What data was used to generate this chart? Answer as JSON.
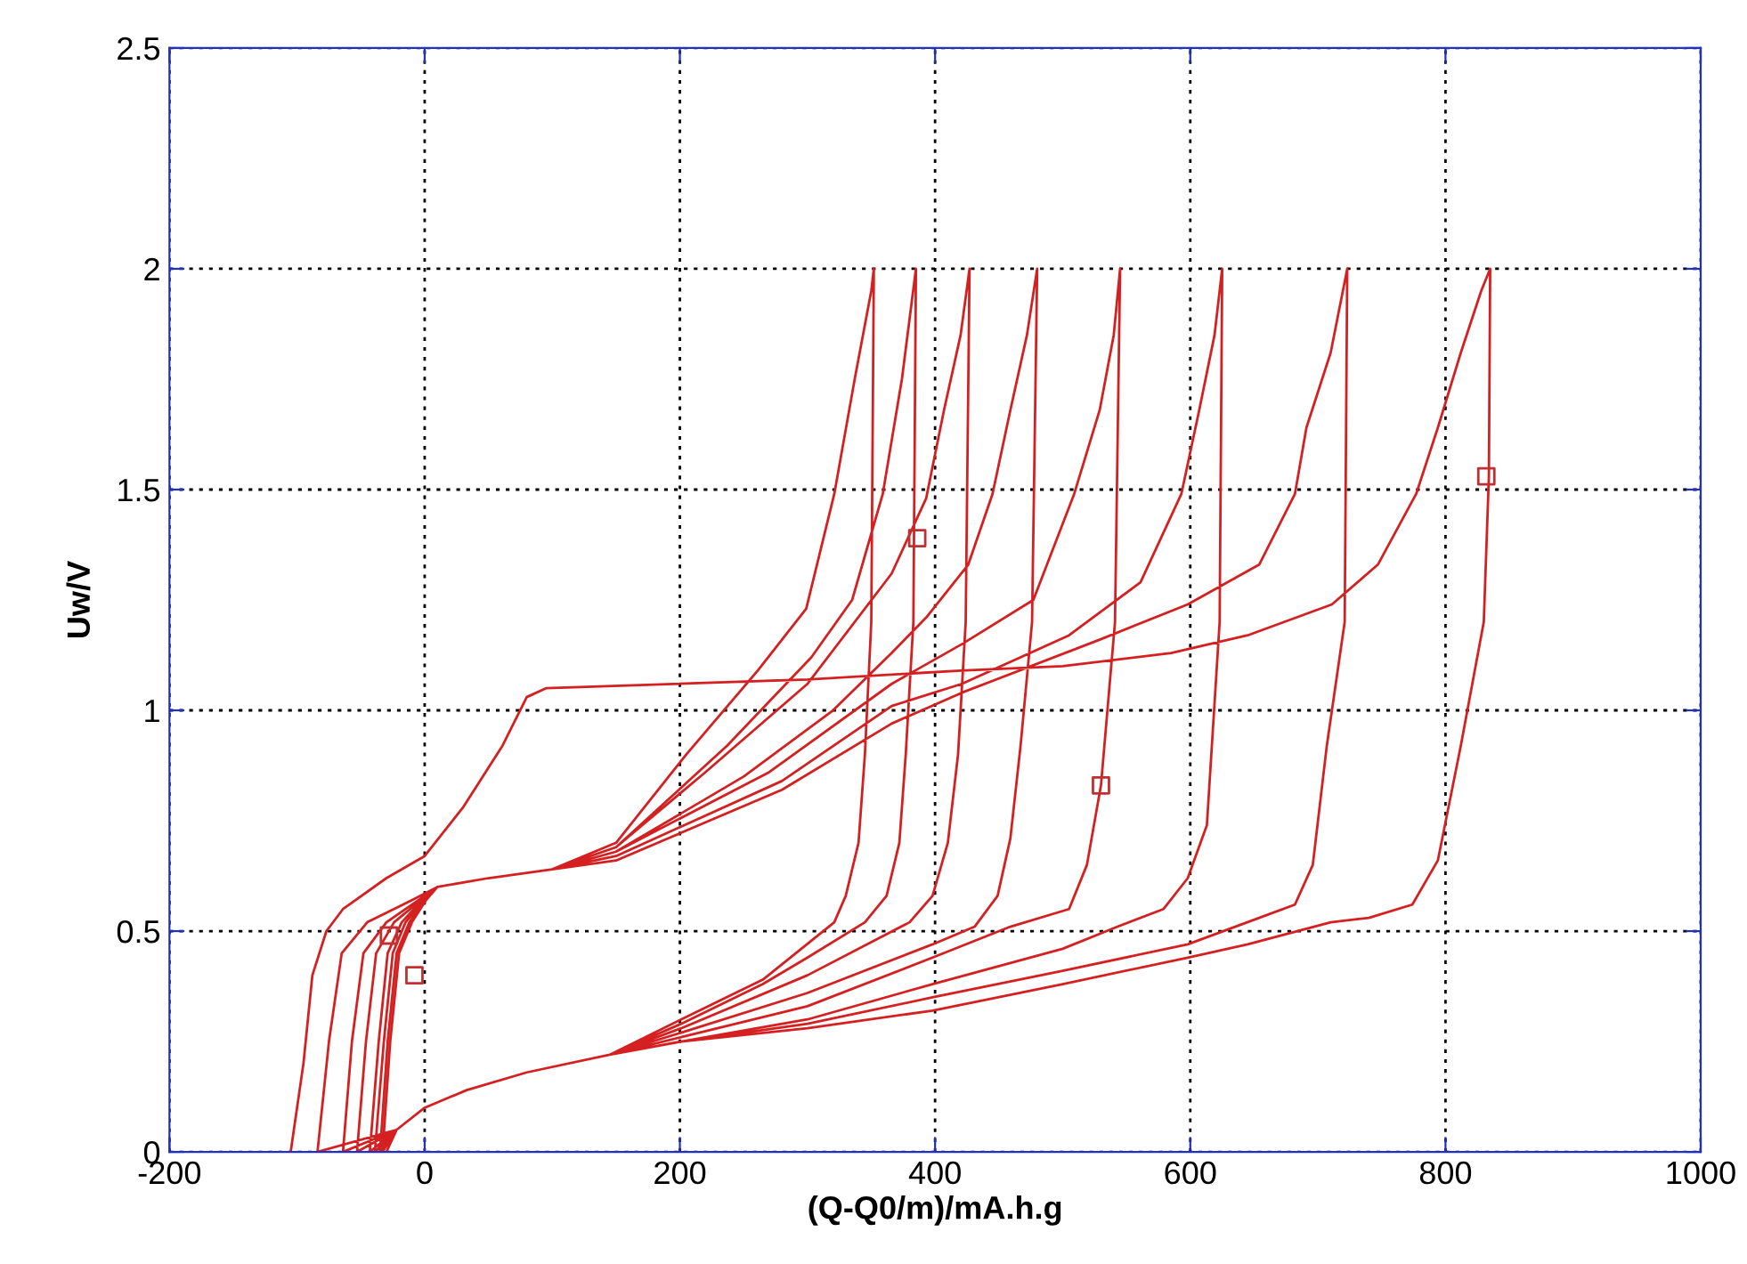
{
  "chart_data": {
    "type": "line",
    "xlabel": "(Q-Q0/m)/mA.h.g",
    "ylabel": "Uw/V",
    "xlim": [
      -200,
      1000
    ],
    "ylim": [
      0,
      2.5
    ],
    "xticks": [
      -200,
      0,
      200,
      400,
      600,
      800,
      1000
    ],
    "yticks": [
      0,
      0.5,
      1,
      1.5,
      2,
      2.5
    ],
    "grid": true,
    "series": [
      {
        "color": "#d42020",
        "x": [
          -105,
          -95,
          -88,
          -77,
          -64,
          -30,
          0,
          30,
          61,
          80,
          95,
          300,
          420,
          500,
          585,
          645,
          711,
          747,
          777,
          794,
          812,
          828,
          835,
          834,
          830,
          812,
          794,
          774,
          740,
          710,
          645,
          598,
          500,
          398,
          300,
          201,
          145,
          80,
          33,
          0,
          -22,
          -84,
          -75,
          -65,
          -45,
          -10,
          10,
          50,
          100,
          150,
          280,
          366,
          421,
          529,
          598,
          654,
          682,
          691,
          710,
          723,
          721,
          707,
          696,
          682,
          654,
          598,
          500,
          398,
          300,
          201,
          145,
          80,
          33,
          0,
          -22,
          -64,
          -57,
          -48,
          -30,
          -5,
          10,
          50,
          100,
          150,
          280,
          366,
          421,
          505,
          561,
          593,
          607,
          619,
          625,
          623,
          613,
          598,
          579,
          543,
          500,
          398,
          300,
          201,
          145,
          80,
          33,
          0,
          -22,
          -53,
          -46,
          -38,
          -24,
          -3,
          10,
          50,
          100,
          150,
          270,
          366,
          421,
          477,
          509,
          529,
          540,
          545,
          541,
          530,
          519,
          505,
          459,
          398,
          300,
          201,
          145,
          80,
          33,
          0,
          -22,
          -43,
          -36,
          -29,
          -18,
          -2,
          10,
          50,
          100,
          150,
          250,
          320,
          366,
          393,
          426,
          445,
          459,
          472,
          480,
          476,
          467,
          459,
          449,
          431,
          398,
          300,
          201,
          145,
          80,
          33,
          0,
          -22,
          -39,
          -32,
          -25,
          -15,
          -1,
          10,
          50,
          100,
          150,
          220,
          300,
          366,
          393,
          407,
          420,
          427,
          424,
          418,
          410,
          398,
          380,
          300,
          201,
          145,
          80,
          33,
          0,
          -22,
          -35,
          -29,
          -22,
          -12,
          0,
          10,
          50,
          100,
          150,
          237,
          303,
          335,
          359,
          374,
          385,
          383,
          377,
          372,
          362,
          345,
          300,
          265,
          201,
          145,
          80,
          33,
          0,
          -22,
          -33,
          -27,
          -20,
          -10,
          1,
          10,
          50,
          100,
          150,
          205,
          261,
          299,
          321,
          337,
          350,
          352,
          350,
          345,
          340,
          330,
          321,
          265,
          201,
          145,
          80,
          33,
          0,
          -22,
          -30
        ],
        "values": [
          0,
          0.2,
          0.4,
          0.5,
          0.55,
          0.62,
          0.67,
          0.78,
          0.92,
          1.03,
          1.05,
          1.07,
          1.09,
          1.1,
          1.13,
          1.17,
          1.24,
          1.33,
          1.49,
          1.64,
          1.81,
          1.95,
          2,
          1.53,
          1.2,
          0.92,
          0.66,
          0.56,
          0.53,
          0.52,
          0.47,
          0.44,
          0.38,
          0.32,
          0.28,
          0.25,
          0.22,
          0.18,
          0.14,
          0.1,
          0.05,
          0,
          0.25,
          0.45,
          0.52,
          0.57,
          0.6,
          0.62,
          0.64,
          0.66,
          0.82,
          0.97,
          1.04,
          1.16,
          1.24,
          1.33,
          1.49,
          1.64,
          1.81,
          2,
          1.2,
          0.92,
          0.65,
          0.56,
          0.53,
          0.47,
          0.41,
          0.35,
          0.29,
          0.25,
          0.22,
          0.18,
          0.14,
          0.1,
          0.05,
          0,
          0.25,
          0.45,
          0.52,
          0.57,
          0.6,
          0.62,
          0.64,
          0.67,
          0.84,
          1.01,
          1.06,
          1.17,
          1.29,
          1.49,
          1.68,
          1.85,
          2,
          1.2,
          0.74,
          0.62,
          0.55,
          0.51,
          0.46,
          0.38,
          0.3,
          0.25,
          0.22,
          0.18,
          0.14,
          0.1,
          0.05,
          0,
          0.25,
          0.45,
          0.52,
          0.57,
          0.6,
          0.62,
          0.64,
          0.68,
          0.86,
          1.06,
          1.15,
          1.25,
          1.49,
          1.68,
          1.85,
          2,
          1.2,
          0.83,
          0.65,
          0.55,
          0.51,
          0.44,
          0.33,
          0.26,
          0.22,
          0.18,
          0.14,
          0.1,
          0.05,
          0,
          0.25,
          0.45,
          0.52,
          0.57,
          0.6,
          0.62,
          0.64,
          0.68,
          0.85,
          1.0,
          1.13,
          1.21,
          1.33,
          1.49,
          1.68,
          1.85,
          2,
          1.2,
          0.92,
          0.71,
          0.58,
          0.51,
          0.47,
          0.36,
          0.27,
          0.22,
          0.18,
          0.14,
          0.1,
          0.05,
          0,
          0.25,
          0.45,
          0.52,
          0.57,
          0.6,
          0.62,
          0.64,
          0.69,
          0.86,
          1.06,
          1.31,
          1.48,
          1.68,
          1.85,
          2,
          1.2,
          0.9,
          0.7,
          0.58,
          0.52,
          0.4,
          0.28,
          0.22,
          0.18,
          0.14,
          0.1,
          0.05,
          0,
          0.25,
          0.45,
          0.52,
          0.57,
          0.6,
          0.62,
          0.64,
          0.69,
          0.92,
          1.12,
          1.25,
          1.49,
          1.75,
          2,
          1.2,
          0.9,
          0.7,
          0.58,
          0.52,
          0.44,
          0.38,
          0.29,
          0.22,
          0.18,
          0.14,
          0.1,
          0.05,
          0,
          0.25,
          0.45,
          0.52,
          0.57,
          0.6,
          0.62,
          0.64,
          0.7,
          0.9,
          1.09,
          1.23,
          1.49,
          1.75,
          1.95,
          2,
          1.2,
          0.9,
          0.7,
          0.58,
          0.52,
          0.39,
          0.3,
          0.22,
          0.18,
          0.14,
          0.1,
          0.05,
          0
        ]
      },
      {
        "type": "scatter",
        "marker": "square",
        "color": "#c03030",
        "x": [
          -28,
          -8,
          386,
          530,
          832
        ],
        "values": [
          0.49,
          0.4,
          1.39,
          0.83,
          1.53
        ]
      }
    ]
  }
}
